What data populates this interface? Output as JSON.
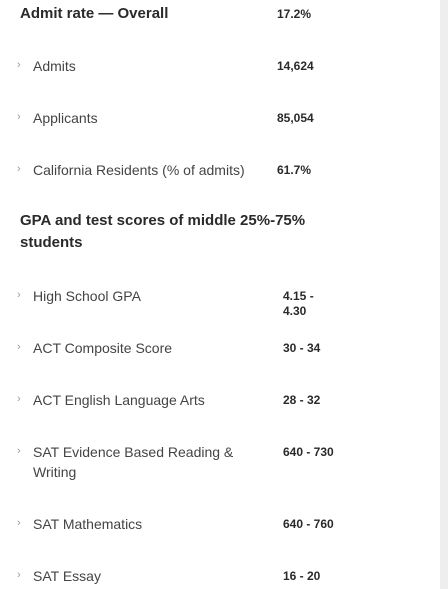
{
  "overall": {
    "title": "Admit rate — Overall",
    "value": "17.2%",
    "rows": [
      {
        "label": "Admits",
        "value": "14,624"
      },
      {
        "label": "Applicants",
        "value": "85,054"
      },
      {
        "label": "California Residents (% of admits)",
        "value": "61.7%"
      }
    ]
  },
  "scores": {
    "title_line1": "GPA and test scores of middle 25%-75%",
    "title_line2": "students",
    "rows": [
      {
        "label": "High School GPA",
        "value_line1": "4.15 -",
        "value_line2": "4.30"
      },
      {
        "label": "ACT Composite Score",
        "value_line1": "30 - 34"
      },
      {
        "label": "ACT English Language Arts",
        "value_line1": "28 - 32"
      },
      {
        "label_line1": "SAT Evidence Based Reading &",
        "label_line2": "Writing",
        "value_line1": "640 - 730"
      },
      {
        "label": "SAT Mathematics",
        "value_line1": "640 - 760"
      },
      {
        "label": "SAT Essay",
        "value_line1": "16 - 20"
      }
    ]
  },
  "icons": {
    "chevron": "›"
  }
}
